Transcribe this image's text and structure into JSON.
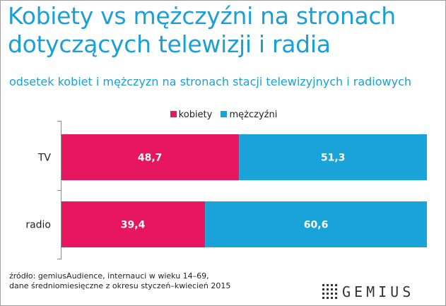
{
  "header": {
    "title_line1": "Kobiety vs mężczyźni na stronach",
    "title_line2": "dotyczących telewizji i radia",
    "subtitle": "odsetek kobiet i  mężczyzn na stronach stacji telewizyjnych i radiowych"
  },
  "colors": {
    "kobiety": "#e8165f",
    "mezczyzni": "#1aa3d8",
    "title": "#1aa0d6"
  },
  "chart_data": {
    "type": "bar",
    "orientation": "horizontal",
    "stacked": true,
    "categories": [
      "TV",
      "radio"
    ],
    "series": [
      {
        "name": "kobiety",
        "values": [
          48.7,
          39.4
        ],
        "labels": [
          "48,7",
          "39,4"
        ]
      },
      {
        "name": "mężczyźni",
        "values": [
          51.3,
          60.6
        ],
        "labels": [
          "51,3",
          "60,6"
        ]
      }
    ],
    "xlim": [
      0,
      100
    ],
    "legend_position": "top-center",
    "grid": false
  },
  "footer": {
    "source_line1": "źródło: gemiusAudience, internauci w wieku 14–69,",
    "source_line2": "dane średniomiesięczne z okresu styczeń–kwiecień 2015",
    "logo_text": "GEMIUS"
  }
}
